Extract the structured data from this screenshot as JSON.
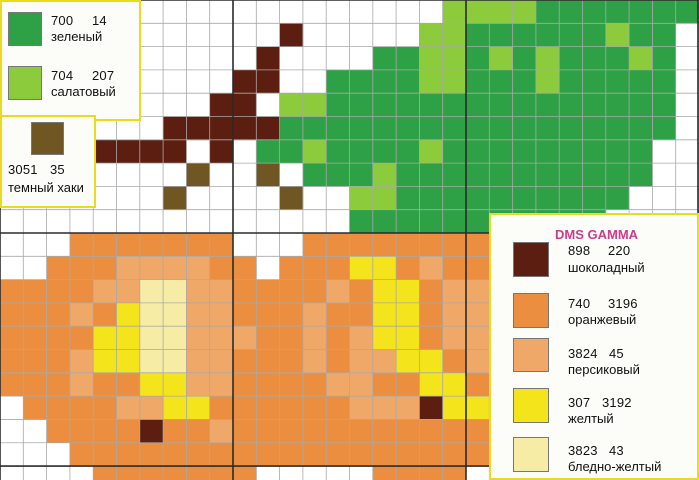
{
  "pattern": {
    "colors": {
      "green": "#2ea046",
      "lightgreen": "#8ccc3c",
      "khaki": "#6f5622",
      "chocolate": "#5c1e10",
      "orange": "#ec8e40",
      "peach": "#f0a868",
      "yellow": "#f4e41c",
      "paleyellow": "#f6eca6",
      "grid_line": "#a9a9a9",
      "major_line": "#2b2b2b"
    }
  },
  "legend_top": [
    {
      "code": "700",
      "number": "14",
      "name": "зеленый",
      "color": "#2ea046"
    },
    {
      "code": "704",
      "number": "207",
      "name": "салатовый",
      "color": "#8ccc3c"
    }
  ],
  "legend_khaki": {
    "code": "3051",
    "number": "35",
    "name": "темный хаки",
    "color": "#6f5622"
  },
  "legend_right": {
    "title": "DMS GAMMA",
    "title_color": "#d13a8a",
    "items": [
      {
        "code": "898",
        "number": "220",
        "name": "шоколадный",
        "color": "#5c1e10"
      },
      {
        "code": "740",
        "number": "3196",
        "name": "оранжевый",
        "color": "#ec8e40"
      },
      {
        "code": "3824",
        "number": "45",
        "name": "персиковый",
        "color": "#f0a868"
      },
      {
        "code": "307",
        "number": "3192",
        "name": "желтый",
        "color": "#f4e41c"
      },
      {
        "code": "3823",
        "number": "43",
        "name": "бледно-желтый",
        "color": "#f6eca6"
      }
    ]
  }
}
